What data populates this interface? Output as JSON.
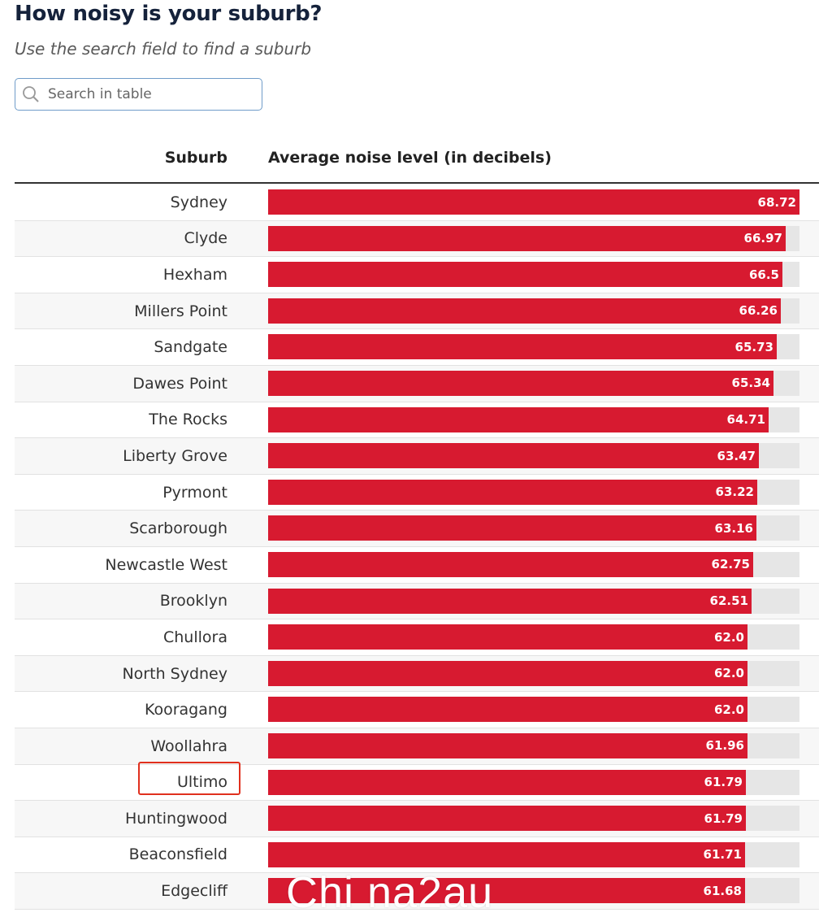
{
  "header": {
    "title": "How noisy is your suburb?",
    "subtitle": "Use the search field to find a suburb"
  },
  "search": {
    "placeholder": "Search in table",
    "icon": "search-icon"
  },
  "table": {
    "columns": [
      "Suburb",
      "Average noise level (in decibels)"
    ]
  },
  "colors": {
    "bar": "#d71a30",
    "track": "#e6e6e6",
    "highlight": "#e0301e"
  },
  "highlighted_suburb": "Ultimo",
  "watermark": "Chi na2au",
  "chart_data": {
    "type": "bar",
    "orientation": "horizontal",
    "xlabel": "Average noise level (in decibels)",
    "ylabel": "Suburb",
    "categories": [
      "Sydney",
      "Clyde",
      "Hexham",
      "Millers Point",
      "Sandgate",
      "Dawes Point",
      "The Rocks",
      "Liberty Grove",
      "Pyrmont",
      "Scarborough",
      "Newcastle West",
      "Brooklyn",
      "Chullora",
      "North Sydney",
      "Kooragang",
      "Woollahra",
      "Ultimo",
      "Huntingwood",
      "Beaconsfield",
      "Edgecliff"
    ],
    "values": [
      68.72,
      66.97,
      66.5,
      66.26,
      65.73,
      65.34,
      64.71,
      63.47,
      63.22,
      63.16,
      62.75,
      62.51,
      62.0,
      62.0,
      62.0,
      61.96,
      61.79,
      61.79,
      61.71,
      61.68
    ],
    "labels": [
      "68.72",
      "66.97",
      "66.5",
      "66.26",
      "65.73",
      "65.34",
      "64.71",
      "63.47",
      "63.22",
      "63.16",
      "62.75",
      "62.51",
      "62.0",
      "62.0",
      "62.0",
      "61.96",
      "61.79",
      "61.79",
      "61.71",
      "61.68"
    ],
    "xlim": [
      0,
      68.72
    ]
  }
}
